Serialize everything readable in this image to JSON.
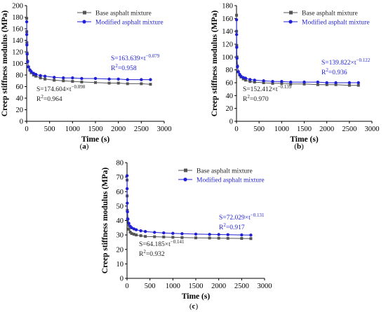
{
  "colors": {
    "base": "#555555",
    "modified": "#1f1fd6",
    "axis": "#000000"
  },
  "panels": [
    {
      "label_prefix": "(",
      "label_letter": "a",
      "label_suffix": ")",
      "base_eq_prefix": "S=174.604×t",
      "base_eq_exp": "−0.098",
      "base_r2_prefix": "R",
      "base_r2_sup": "2",
      "base_r2_value": "=0.964",
      "mod_eq_prefix": "S=163.639×t",
      "mod_eq_exp": "−0.079",
      "mod_r2_prefix": "R",
      "mod_r2_sup": "2",
      "mod_r2_value": "=0.958"
    },
    {
      "label_prefix": "(",
      "label_letter": "b",
      "label_suffix": ")",
      "base_eq_prefix": "S=152.412×t",
      "base_eq_exp": "−0.139",
      "base_r2_prefix": "R",
      "base_r2_sup": "2",
      "base_r2_value": "=0.970",
      "mod_eq_prefix": "S=139.822×t",
      "mod_eq_exp": "−0.122",
      "mod_r2_prefix": "R",
      "mod_r2_sup": "2",
      "mod_r2_value": "=0.936"
    },
    {
      "label_prefix": "(",
      "label_letter": "c",
      "label_suffix": ")",
      "base_eq_prefix": "S=64.185×t",
      "base_eq_exp": "−0.141",
      "base_r2_prefix": "R",
      "base_r2_sup": "2",
      "base_r2_value": "=0.932",
      "mod_eq_prefix": "S=72.029×t",
      "mod_eq_exp": "−0.131",
      "mod_r2_prefix": "R",
      "mod_r2_sup": "2",
      "mod_r2_value": "=0.917"
    }
  ],
  "chart_data": [
    {
      "type": "scatter",
      "xlabel": "Time (s)",
      "ylabel": "Creep stiffness modulus (MPa)",
      "xlim": [
        0,
        3000
      ],
      "ylim": [
        0,
        200
      ],
      "xticks": [
        0,
        500,
        1000,
        1500,
        2000,
        2500,
        3000
      ],
      "yticks": [
        0,
        20,
        40,
        60,
        80,
        100,
        120,
        140,
        160,
        180,
        200
      ],
      "legend_position": "top-right",
      "series": [
        {
          "name": "Base asphalt mixture",
          "marker": "square",
          "x": [
            1,
            2,
            5,
            10,
            20,
            40,
            70,
            100,
            150,
            200,
            300,
            400,
            600,
            800,
            1000,
            1200,
            1500,
            1800,
            2000,
            2200,
            2500,
            2700
          ],
          "y": [
            178,
            155,
            136,
            118,
            104,
            94,
            88,
            84,
            80,
            78,
            75,
            73,
            71,
            70,
            69,
            68,
            67,
            66,
            66,
            65,
            65,
            64
          ]
        },
        {
          "name": "Modified asphalt mixture",
          "marker": "circle",
          "x": [
            1,
            2,
            5,
            10,
            20,
            40,
            70,
            100,
            150,
            200,
            300,
            400,
            600,
            800,
            1000,
            1200,
            1500,
            1800,
            2000,
            2200,
            2500,
            2700
          ],
          "y": [
            172,
            150,
            132,
            116,
            103,
            94,
            89,
            86,
            83,
            81,
            79,
            78,
            76,
            75,
            75,
            74,
            74,
            73,
            73,
            72,
            72,
            72
          ]
        }
      ]
    },
    {
      "type": "scatter",
      "xlabel": "Time (s)",
      "ylabel": "Creep stiffness modulus (MPa)",
      "xlim": [
        0,
        3000
      ],
      "ylim": [
        0,
        180
      ],
      "xticks": [
        0,
        500,
        1000,
        1500,
        2000,
        2500,
        3000
      ],
      "yticks": [
        0,
        20,
        40,
        60,
        80,
        100,
        120,
        140,
        160,
        180
      ],
      "legend_position": "top-right",
      "series": [
        {
          "name": "Base asphalt mixture",
          "marker": "square",
          "x": [
            1,
            2,
            5,
            10,
            20,
            40,
            70,
            100,
            150,
            200,
            300,
            400,
            600,
            800,
            1000,
            1200,
            1500,
            1800,
            2000,
            2200,
            2500,
            2700
          ],
          "y": [
            165,
            140,
            118,
            100,
            86,
            77,
            72,
            69,
            66,
            64,
            62,
            61,
            60,
            59,
            59,
            58,
            58,
            57,
            57,
            57,
            56,
            56
          ]
        },
        {
          "name": "Modified asphalt mixture",
          "marker": "circle",
          "x": [
            1,
            2,
            5,
            10,
            20,
            40,
            70,
            100,
            150,
            200,
            300,
            400,
            600,
            800,
            1000,
            1200,
            1500,
            1800,
            2000,
            2200,
            2500,
            2700
          ],
          "y": [
            158,
            135,
            115,
            98,
            85,
            77,
            73,
            70,
            68,
            67,
            65,
            64,
            63,
            62,
            62,
            61,
            61,
            61,
            60,
            60,
            60,
            60
          ]
        }
      ]
    },
    {
      "type": "scatter",
      "xlabel": "Time (s)",
      "ylabel": "Creep stiffness modulus (MPa)",
      "xlim": [
        0,
        3000
      ],
      "ylim": [
        0,
        80
      ],
      "xticks": [
        0,
        500,
        1000,
        1500,
        2000,
        2500,
        3000
      ],
      "yticks": [
        0,
        10,
        20,
        30,
        40,
        50,
        60,
        70,
        80
      ],
      "legend_position": "top-right",
      "series": [
        {
          "name": "Base asphalt mixture",
          "marker": "square",
          "x": [
            1,
            2,
            5,
            10,
            20,
            40,
            70,
            100,
            150,
            200,
            300,
            400,
            600,
            800,
            1000,
            1200,
            1500,
            1800,
            2000,
            2200,
            2500,
            2700
          ],
          "y": [
            68,
            57,
            47,
            41,
            37,
            34,
            32,
            31,
            30.5,
            30,
            29.5,
            29,
            28.8,
            28.6,
            28.4,
            28.2,
            28,
            27.9,
            27.8,
            27.7,
            27.6,
            27.5
          ]
        },
        {
          "name": "Modified asphalt mixture",
          "marker": "circle",
          "x": [
            1,
            2,
            5,
            10,
            20,
            40,
            70,
            100,
            150,
            200,
            300,
            400,
            600,
            800,
            1000,
            1200,
            1500,
            1800,
            2000,
            2200,
            2500,
            2700
          ],
          "y": [
            71,
            62,
            52,
            46,
            41,
            38,
            36,
            35,
            34.2,
            33.6,
            32.9,
            32.4,
            31.8,
            31.4,
            31.1,
            30.9,
            30.6,
            30.4,
            30.3,
            30.2,
            30,
            29.9
          ]
        }
      ]
    }
  ]
}
